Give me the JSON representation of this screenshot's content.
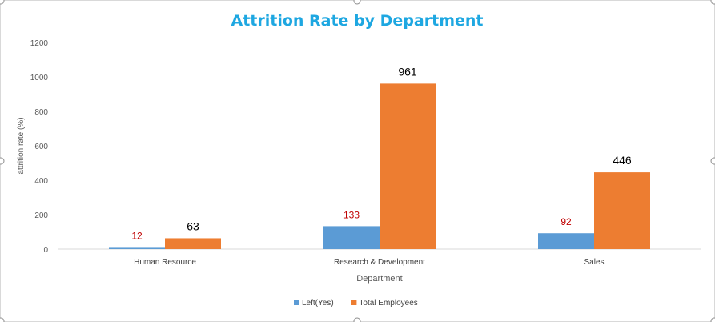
{
  "chart_data": {
    "type": "bar",
    "title": "Attrition Rate by Department",
    "xlabel": "Department",
    "ylabel": "attrition rate (%)",
    "categories": [
      "Human Resource",
      "Research & Development",
      "Sales"
    ],
    "series": [
      {
        "name": "Left(Yes)",
        "values": [
          12,
          133,
          92
        ],
        "color": "#5B9BD5",
        "label_color": "#C00000"
      },
      {
        "name": "Total Employees",
        "values": [
          63,
          961,
          446
        ],
        "color": "#ED7D31",
        "label_color": "#000000"
      }
    ],
    "ylim": [
      0,
      1200
    ],
    "yticks": [
      "0",
      "200",
      "400",
      "600",
      "800",
      "1000",
      "1200"
    ],
    "grid": false,
    "legend_position": "bottom",
    "title_color": "#1EA7E1"
  }
}
